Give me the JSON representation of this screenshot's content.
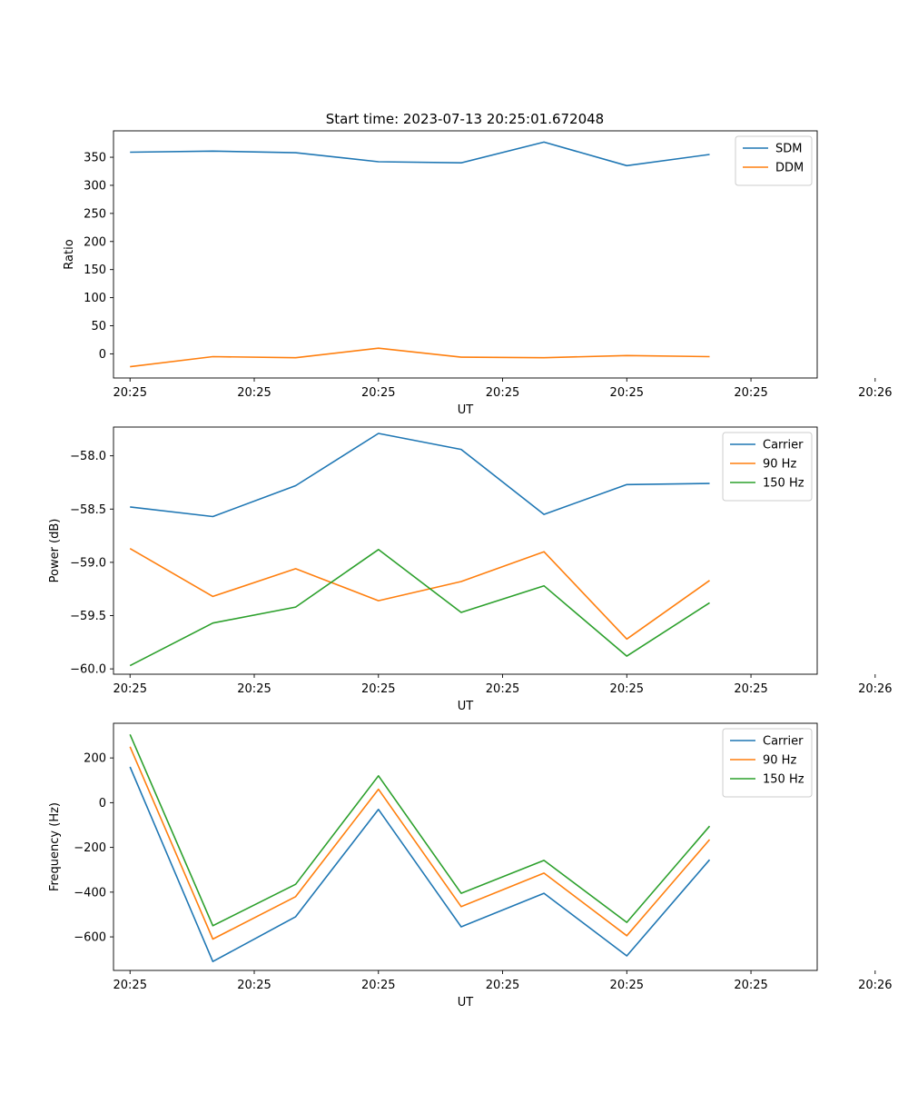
{
  "figure_title": "Start time: 2023-07-13 20:25:01.672048",
  "chart_data": [
    {
      "type": "line",
      "ylabel": "Ratio",
      "xlabel": "UT",
      "x": [
        1,
        2,
        3,
        4,
        5,
        6,
        7,
        8
      ],
      "xlim": [
        0.8,
        9.3
      ],
      "ylim": [
        -43,
        397
      ],
      "x_ticks": [
        {
          "x": 1,
          "label": "20:25"
        },
        {
          "x": 2.5,
          "label": "20:25"
        },
        {
          "x": 4,
          "label": "20:25"
        },
        {
          "x": 5.5,
          "label": "20:25"
        },
        {
          "x": 7,
          "label": "20:25"
        },
        {
          "x": 8.5,
          "label": "20:25"
        },
        {
          "x": 10,
          "label": "20:26"
        }
      ],
      "y_ticks": [
        {
          "y": 0,
          "label": "0"
        },
        {
          "y": 50,
          "label": "50"
        },
        {
          "y": 100,
          "label": "100"
        },
        {
          "y": 150,
          "label": "150"
        },
        {
          "y": 200,
          "label": "200"
        },
        {
          "y": 250,
          "label": "250"
        },
        {
          "y": 300,
          "label": "300"
        },
        {
          "y": 350,
          "label": "350"
        }
      ],
      "legend_position": "top-right",
      "series": [
        {
          "name": "SDM",
          "color": "#1f77b4",
          "values": [
            359,
            361,
            358,
            342,
            340,
            377,
            335,
            355
          ]
        },
        {
          "name": "DDM",
          "color": "#ff7f0e",
          "values": [
            -23,
            -5,
            -7,
            10,
            -6,
            -7,
            -3,
            -5
          ]
        }
      ]
    },
    {
      "type": "line",
      "ylabel": "Power (dB)",
      "xlabel": "UT",
      "x": [
        1,
        2,
        3,
        4,
        5,
        6,
        7,
        8
      ],
      "xlim": [
        0.8,
        9.3
      ],
      "ylim": [
        -60.05,
        -57.73
      ],
      "x_ticks": [
        {
          "x": 1,
          "label": "20:25"
        },
        {
          "x": 2.5,
          "label": "20:25"
        },
        {
          "x": 4,
          "label": "20:25"
        },
        {
          "x": 5.5,
          "label": "20:25"
        },
        {
          "x": 7,
          "label": "20:25"
        },
        {
          "x": 8.5,
          "label": "20:25"
        },
        {
          "x": 10,
          "label": "20:26"
        }
      ],
      "y_ticks": [
        {
          "y": -60.0,
          "label": "−60.0"
        },
        {
          "y": -59.5,
          "label": "−59.5"
        },
        {
          "y": -59.0,
          "label": "−59.0"
        },
        {
          "y": -58.5,
          "label": "−58.5"
        },
        {
          "y": -58.0,
          "label": "−58.0"
        }
      ],
      "legend_position": "top-right",
      "series": [
        {
          "name": "Carrier",
          "color": "#1f77b4",
          "values": [
            -58.48,
            -58.57,
            -58.28,
            -57.79,
            -57.94,
            -58.55,
            -58.27,
            -58.26
          ]
        },
        {
          "name": "90 Hz",
          "color": "#ff7f0e",
          "values": [
            -58.87,
            -59.32,
            -59.06,
            -59.36,
            -59.18,
            -58.9,
            -59.72,
            -59.17
          ]
        },
        {
          "name": "150 Hz",
          "color": "#2ca02c",
          "values": [
            -59.97,
            -59.57,
            -59.42,
            -58.88,
            -59.47,
            -59.22,
            -59.88,
            -59.38
          ]
        }
      ]
    },
    {
      "type": "line",
      "ylabel": "Frequency (Hz)",
      "xlabel": "UT",
      "x": [
        1,
        2,
        3,
        4,
        5,
        6,
        7,
        8
      ],
      "xlim": [
        0.8,
        9.3
      ],
      "ylim": [
        -750,
        355
      ],
      "x_ticks": [
        {
          "x": 1,
          "label": "20:25"
        },
        {
          "x": 2.5,
          "label": "20:25"
        },
        {
          "x": 4,
          "label": "20:25"
        },
        {
          "x": 5.5,
          "label": "20:25"
        },
        {
          "x": 7,
          "label": "20:25"
        },
        {
          "x": 8.5,
          "label": "20:25"
        },
        {
          "x": 10,
          "label": "20:26"
        }
      ],
      "y_ticks": [
        {
          "y": -600,
          "label": "−600"
        },
        {
          "y": -400,
          "label": "−400"
        },
        {
          "y": -200,
          "label": "−200"
        },
        {
          "y": 0,
          "label": "0"
        },
        {
          "y": 200,
          "label": "200"
        }
      ],
      "legend_position": "top-right",
      "series": [
        {
          "name": "Carrier",
          "color": "#1f77b4",
          "values": [
            160,
            -710,
            -510,
            -30,
            -555,
            -405,
            -685,
            -255
          ]
        },
        {
          "name": "90 Hz",
          "color": "#ff7f0e",
          "values": [
            250,
            -610,
            -420,
            60,
            -465,
            -315,
            -595,
            -165
          ]
        },
        {
          "name": "150 Hz",
          "color": "#2ca02c",
          "values": [
            305,
            -550,
            -365,
            120,
            -405,
            -258,
            -535,
            -105
          ]
        }
      ]
    }
  ]
}
